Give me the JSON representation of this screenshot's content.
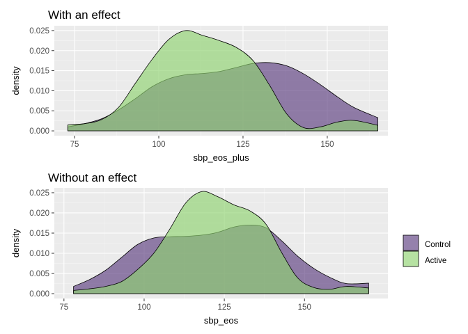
{
  "colors": {
    "panel_bg": "#EBEBEB",
    "grid_major": "#FFFFFF",
    "grid_minor": "#F5F5F5",
    "tick": "#333333",
    "control": "#5C3E7F",
    "active": "#8FD370",
    "fill_opacity": 0.65,
    "outline": "#000000"
  },
  "legend": {
    "position": "right",
    "items": [
      {
        "label": "Control",
        "color": "#5C3E7F"
      },
      {
        "label": "Active",
        "color": "#8FD370"
      }
    ]
  },
  "chart_data": [
    {
      "type": "area",
      "title": "With an effect",
      "xlabel": "sbp_eos_plus",
      "ylabel": "density",
      "xlim": [
        69,
        168
      ],
      "ylim": [
        -0.0012,
        0.0262
      ],
      "x_ticks": [
        75,
        100,
        125,
        150
      ],
      "y_ticks": [
        0.0,
        0.005,
        0.01,
        0.015,
        0.02,
        0.025
      ],
      "y_tick_labels": [
        "0.000",
        "0.005",
        "0.010",
        "0.015",
        "0.020",
        "0.025"
      ],
      "grid": true,
      "legend_position": "right",
      "series": [
        {
          "name": "Control",
          "x": [
            73,
            78,
            83,
            88,
            93,
            98,
            103,
            108,
            113,
            118,
            123,
            128,
            133,
            138,
            143,
            148,
            153,
            158,
            165
          ],
          "y": [
            0.001,
            0.0018,
            0.003,
            0.0052,
            0.008,
            0.011,
            0.013,
            0.014,
            0.0143,
            0.0148,
            0.0158,
            0.0168,
            0.017,
            0.0162,
            0.0142,
            0.0115,
            0.0085,
            0.0058,
            0.0033
          ]
        },
        {
          "name": "Active",
          "x": [
            73,
            78,
            83,
            88,
            93,
            98,
            103,
            108,
            113,
            118,
            123,
            128,
            133,
            138,
            143,
            148,
            153,
            158,
            165
          ],
          "y": [
            0.0015,
            0.0018,
            0.0028,
            0.0058,
            0.0118,
            0.0178,
            0.0228,
            0.025,
            0.0238,
            0.0225,
            0.0208,
            0.0175,
            0.0112,
            0.0042,
            0.0008,
            0.001,
            0.0022,
            0.0026,
            0.0014
          ]
        }
      ]
    },
    {
      "type": "area",
      "title": "Without an effect",
      "xlabel": "sbp_eos",
      "ylabel": "density",
      "xlim": [
        72,
        176
      ],
      "ylim": [
        -0.0012,
        0.0262
      ],
      "x_ticks": [
        75,
        100,
        125,
        150
      ],
      "y_ticks": [
        0.0,
        0.005,
        0.01,
        0.015,
        0.02,
        0.025
      ],
      "y_tick_labels": [
        "0.000",
        "0.005",
        "0.010",
        "0.015",
        "0.020",
        "0.025"
      ],
      "grid": true,
      "legend_position": "right",
      "series": [
        {
          "name": "Control",
          "x": [
            78,
            83,
            88,
            93,
            98,
            103,
            108,
            113,
            118,
            123,
            128,
            133,
            138,
            143,
            148,
            153,
            158,
            163,
            170
          ],
          "y": [
            0.0018,
            0.0035,
            0.0058,
            0.009,
            0.0122,
            0.0138,
            0.0141,
            0.0142,
            0.0145,
            0.0152,
            0.0165,
            0.017,
            0.0163,
            0.013,
            0.0092,
            0.0062,
            0.004,
            0.0025,
            0.0026
          ]
        },
        {
          "name": "Active",
          "x": [
            78,
            83,
            88,
            93,
            98,
            103,
            108,
            113,
            118,
            123,
            128,
            133,
            138,
            143,
            148,
            153,
            158,
            163,
            170
          ],
          "y": [
            0.0008,
            0.0012,
            0.0018,
            0.003,
            0.006,
            0.01,
            0.016,
            0.0225,
            0.0253,
            0.024,
            0.022,
            0.0205,
            0.0172,
            0.01,
            0.0038,
            0.0015,
            0.0011,
            0.0018,
            0.0014
          ]
        }
      ]
    }
  ]
}
